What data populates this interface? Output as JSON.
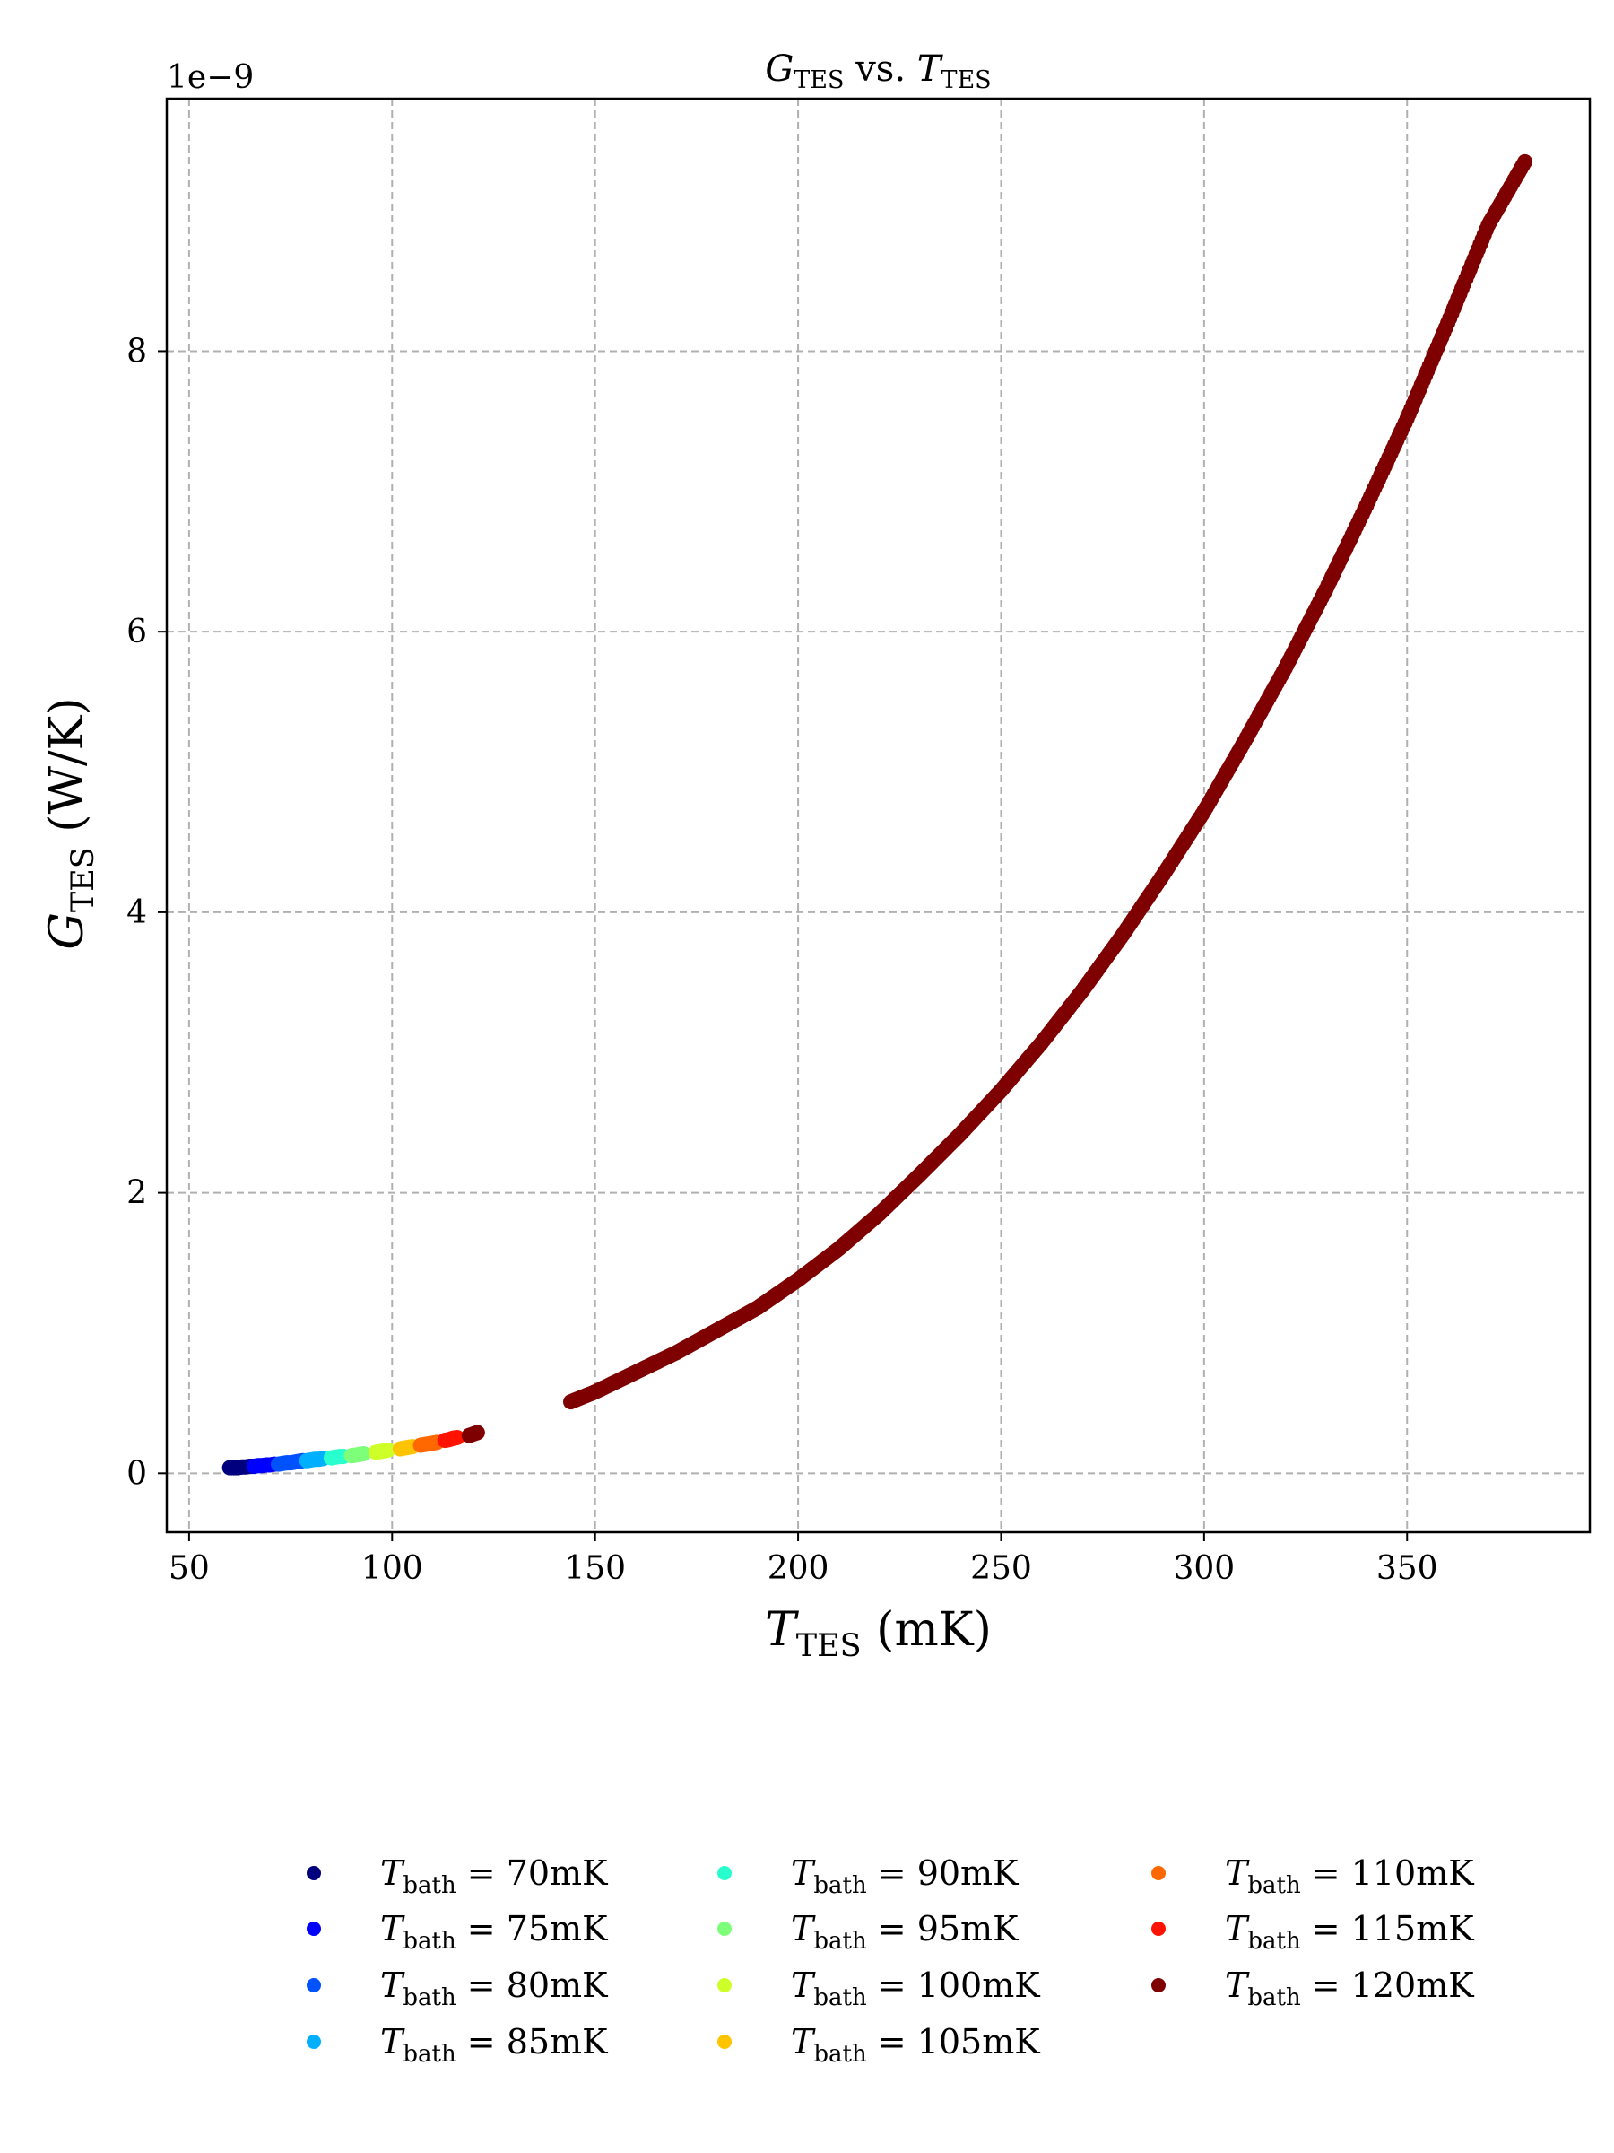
{
  "chart_data": {
    "type": "scatter",
    "title": {
      "main": "G",
      "sub": "TES",
      "rest": " vs. ",
      "main2": "T",
      "sub2": "TES"
    },
    "xlabel": {
      "main": "T",
      "sub": "TES",
      "rest": " (mK)"
    },
    "ylabel": {
      "main": "G",
      "sub": "TES",
      "rest": " (W/K)"
    },
    "y_offset_label": "1e−9",
    "xlim": [
      44.5,
      395
    ],
    "ylim": [
      -0.42,
      9.8
    ],
    "y_scale_exponent": -9,
    "xticks": [
      50,
      100,
      150,
      200,
      250,
      300,
      350
    ],
    "xtick_labels": [
      "50",
      "100",
      "150",
      "200",
      "250",
      "300",
      "350"
    ],
    "yticks": [
      0,
      2,
      4,
      6,
      8
    ],
    "ytick_labels": [
      "0",
      "2",
      "4",
      "6",
      "8"
    ],
    "grid": true,
    "legend_position": "below-plot",
    "series": [
      {
        "name": "T_bath = 70mK",
        "label": {
          "main": "T",
          "sub": "bath",
          "rest": " = 70mK"
        },
        "color": "#00007f",
        "x": [
          60,
          61,
          62,
          63,
          64,
          65,
          66
        ],
        "y": [
          0.04,
          0.04,
          0.04,
          0.045,
          0.045,
          0.05,
          0.05
        ]
      },
      {
        "name": "T_bath = 75mK",
        "label": {
          "main": "T",
          "sub": "bath",
          "rest": " = 75mK"
        },
        "color": "#0000ff",
        "x": [
          66,
          67,
          68,
          69,
          70,
          71
        ],
        "y": [
          0.05,
          0.055,
          0.055,
          0.06,
          0.06,
          0.065
        ]
      },
      {
        "name": "T_bath = 80mK",
        "label": {
          "main": "T",
          "sub": "bath",
          "rest": " = 80mK"
        },
        "color": "#0052ff",
        "x": [
          72,
          73,
          74,
          75,
          76,
          77,
          78
        ],
        "y": [
          0.065,
          0.07,
          0.075,
          0.075,
          0.08,
          0.085,
          0.09
        ]
      },
      {
        "name": "T_bath = 85mK",
        "label": {
          "main": "T",
          "sub": "bath",
          "rest": " = 85mK"
        },
        "color": "#00b0ff",
        "x": [
          79,
          80,
          81,
          82,
          83
        ],
        "y": [
          0.09,
          0.095,
          0.1,
          0.1,
          0.105
        ]
      },
      {
        "name": "T_bath = 90mK",
        "label": {
          "main": "T",
          "sub": "bath",
          "rest": " = 90mK"
        },
        "color": "#29ffce",
        "x": [
          85,
          86,
          87,
          88
        ],
        "y": [
          0.11,
          0.115,
          0.12,
          0.12
        ]
      },
      {
        "name": "T_bath = 95mK",
        "label": {
          "main": "T",
          "sub": "bath",
          "rest": " = 95mK"
        },
        "color": "#7dff7a",
        "x": [
          90,
          91,
          92,
          93
        ],
        "y": [
          0.125,
          0.13,
          0.135,
          0.14
        ]
      },
      {
        "name": "T_bath = 100mK",
        "label": {
          "main": "T",
          "sub": "bath",
          "rest": " = 100mK"
        },
        "color": "#ceff29",
        "x": [
          96,
          97,
          98,
          99
        ],
        "y": [
          0.15,
          0.155,
          0.16,
          0.165
        ]
      },
      {
        "name": "T_bath = 105mK",
        "label": {
          "main": "T",
          "sub": "bath",
          "rest": " = 105mK"
        },
        "color": "#ffc400",
        "x": [
          102,
          103,
          104,
          105
        ],
        "y": [
          0.175,
          0.18,
          0.185,
          0.19
        ]
      },
      {
        "name": "T_bath = 110mK",
        "label": {
          "main": "T",
          "sub": "bath",
          "rest": " = 110mK"
        },
        "color": "#ff6800",
        "x": [
          107,
          108,
          109,
          110,
          111
        ],
        "y": [
          0.2,
          0.205,
          0.21,
          0.215,
          0.22
        ]
      },
      {
        "name": "T_bath = 115mK",
        "label": {
          "main": "T",
          "sub": "bath",
          "rest": " = 115mK"
        },
        "color": "#ff1300",
        "x": [
          113,
          114,
          115,
          116
        ],
        "y": [
          0.235,
          0.24,
          0.25,
          0.255
        ]
      },
      {
        "name": "T_bath = 120mK",
        "label": {
          "main": "T",
          "sub": "bath",
          "rest": " = 120mK"
        },
        "color": "#7f0000",
        "x": [
          119,
          120,
          121,
          144,
          150,
          160,
          170,
          180,
          190,
          200,
          210,
          220,
          230,
          240,
          250,
          260,
          270,
          280,
          290,
          300,
          310,
          320,
          330,
          340,
          350,
          360,
          370,
          379
        ],
        "y": [
          0.27,
          0.28,
          0.29,
          0.51,
          0.58,
          0.72,
          0.86,
          1.02,
          1.18,
          1.38,
          1.6,
          1.85,
          2.13,
          2.42,
          2.73,
          3.07,
          3.44,
          3.84,
          4.27,
          4.72,
          5.22,
          5.74,
          6.3,
          6.9,
          7.52,
          8.2,
          8.9,
          9.35
        ]
      }
    ]
  }
}
